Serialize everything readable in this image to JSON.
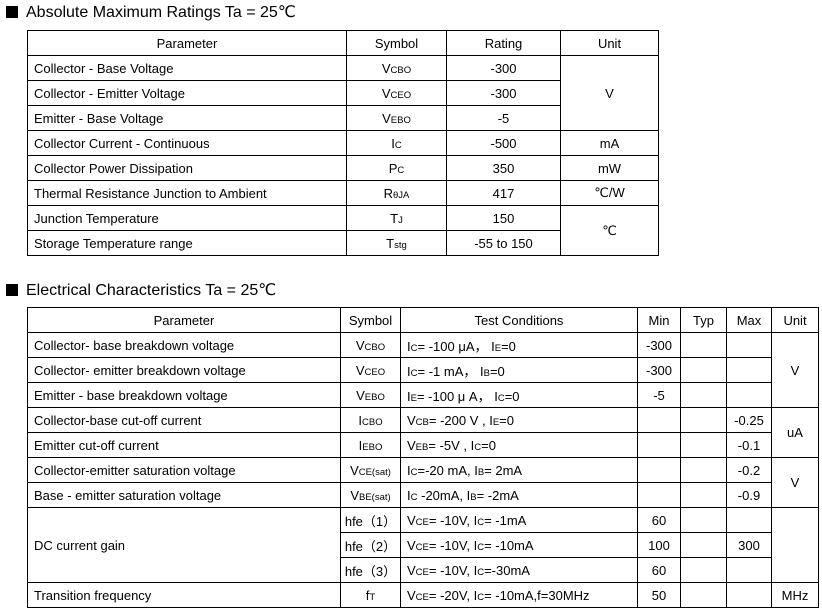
{
  "absolute_maximum_ratings": {
    "title": "Absolute Maximum Ratings Ta = 25℃",
    "headers": [
      "Parameter",
      "Symbol",
      "Rating",
      "Unit"
    ],
    "rows": [
      {
        "parameter": "Collector - Base Voltage",
        "symbol": [
          "V",
          "CBO"
        ],
        "rating": "-300",
        "unit": "V"
      },
      {
        "parameter": "Collector - Emitter Voltage",
        "symbol": [
          "V",
          "CEO"
        ],
        "rating": "-300"
      },
      {
        "parameter": "Emitter - Base Voltage",
        "symbol": [
          "V",
          "EBO"
        ],
        "rating": "-5"
      },
      {
        "parameter": "Collector Current  - Continuous",
        "symbol": [
          "I",
          "C"
        ],
        "rating": "-500",
        "unit": "mA"
      },
      {
        "parameter": "Collector Power Dissipation",
        "symbol": [
          "P",
          "C"
        ],
        "rating": "350",
        "unit": "mW"
      },
      {
        "parameter": "Thermal Resistance Junction to Ambient",
        "symbol": [
          "R",
          "θJA"
        ],
        "rating": "417",
        "unit": "℃/W"
      },
      {
        "parameter": "Junction Temperature",
        "symbol": [
          "T",
          "J"
        ],
        "rating": "150",
        "unit": "℃"
      },
      {
        "parameter": "Storage Temperature range",
        "symbol": [
          "T",
          "stg"
        ],
        "rating": "-55 to 150"
      }
    ]
  },
  "electrical_characteristics": {
    "title": "Electrical Characteristics Ta = 25℃",
    "headers": [
      "Parameter",
      "Symbol",
      "Test Conditions",
      "Min",
      "Typ",
      "Max",
      "Unit"
    ],
    "rows": [
      {
        "parameter": "Collector- base breakdown voltage",
        "symbol": [
          "V",
          "CBO"
        ],
        "conditions": [
          "I",
          "C",
          "= -100 μA，  I",
          "E",
          "=0"
        ],
        "min": "-300",
        "unit": "V"
      },
      {
        "parameter": "Collector- emitter breakdown voltage",
        "symbol": [
          "V",
          "CEO"
        ],
        "conditions": [
          "I",
          "C",
          "= -1 mA，  I",
          "B",
          "=0"
        ],
        "min": "-300"
      },
      {
        "parameter": "Emitter - base breakdown voltage",
        "symbol": [
          "V",
          "EBO"
        ],
        "conditions": [
          "I",
          "E",
          "= -100 μ A，  I",
          "C",
          "=0"
        ],
        "min": "-5"
      },
      {
        "parameter": "Collector-base cut-off current",
        "symbol": [
          "I",
          "CBO"
        ],
        "conditions": [
          "V",
          "CB",
          "= -200 V , I",
          "E",
          "=0"
        ],
        "max": "-0.25",
        "unit": "uA"
      },
      {
        "parameter": "Emitter cut-off current",
        "symbol": [
          "I",
          "EBO"
        ],
        "conditions": [
          "V",
          "EB",
          "= -5V , I",
          "C",
          "=0"
        ],
        "max": "-0.1"
      },
      {
        "parameter": "Collector-emitter saturation voltage",
        "symbol": [
          "V",
          "CE(sat)"
        ],
        "conditions": [
          "I",
          "C",
          "=-20 mA, I",
          "B",
          "= 2mA"
        ],
        "max": "-0.2",
        "unit": "V"
      },
      {
        "parameter": "Base - emitter saturation voltage",
        "symbol": [
          "V",
          "BE(sat)"
        ],
        "conditions": [
          "I",
          "C",
          " -20mA, I",
          "B",
          "= -2mA"
        ],
        "max": "-0.9"
      },
      {
        "parameter": "DC current gain",
        "symbol": [
          "hfe（1）"
        ],
        "conditions": [
          "V",
          "CE",
          "= -10V, I",
          "C",
          "= -1mA"
        ],
        "min": "60"
      },
      {
        "symbol": [
          "hfe（2）"
        ],
        "conditions": [
          "V",
          "CE",
          "= -10V, I",
          "C",
          "= -10mA"
        ],
        "min": "100",
        "max": "300"
      },
      {
        "symbol": [
          "hfe（3）"
        ],
        "conditions": [
          "V",
          "CE",
          "= -10V, I",
          "C",
          "=-30mA"
        ],
        "min": "60"
      },
      {
        "parameter": "Transition frequency",
        "symbol": [
          "f",
          "T"
        ],
        "conditions": [
          "V",
          "CE",
          "= -20V, I",
          "C",
          "= -10mA,f=30MHz"
        ],
        "min": "50",
        "unit": "MHz"
      }
    ]
  }
}
